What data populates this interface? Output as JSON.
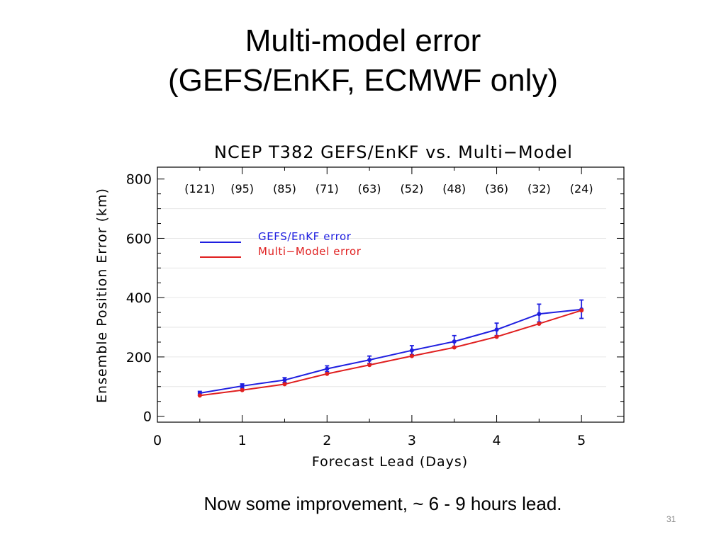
{
  "slide": {
    "title_line1": "Multi-model error",
    "title_line2": "(GEFS/EnKF, ECMWF only)",
    "caption": "Now some improvement, ~ 6 - 9 hours lead.",
    "page_number": "31"
  },
  "chart_data": {
    "type": "line",
    "title": "NCEP T382 GEFS/EnKF vs. Multi−Model",
    "xlabel": "Forecast Lead (Days)",
    "ylabel": "Ensemble Position Error (km)",
    "xlim": [
      0,
      5.5
    ],
    "ylim": [
      -20,
      840
    ],
    "xticks": [
      0,
      1,
      2,
      3,
      4,
      5
    ],
    "yticks": [
      0,
      200,
      400,
      600,
      800
    ],
    "grid": true,
    "legend_position": "upper-left",
    "x": [
      0.5,
      1,
      1.5,
      2,
      2.5,
      3,
      3.5,
      4,
      4.5,
      5
    ],
    "sample_sizes": [
      "(121)",
      "(95)",
      "(85)",
      "(71)",
      "(63)",
      "(52)",
      "(48)",
      "(36)",
      "(32)",
      "(24)"
    ],
    "series": [
      {
        "name": "GEFS/EnKF error",
        "color": "#1f1fe0",
        "values": [
          78,
          102,
          122,
          160,
          190,
          222,
          252,
          292,
          345,
          360
        ],
        "error_low": [
          72,
          95,
          114,
          150,
          178,
          208,
          235,
          272,
          318,
          330
        ],
        "error_high": [
          84,
          109,
          130,
          170,
          203,
          238,
          272,
          314,
          378,
          392
        ]
      },
      {
        "name": "Multi−Model error",
        "color": "#e01f1f",
        "values": [
          70,
          88,
          108,
          143,
          173,
          203,
          232,
          268,
          312,
          357
        ]
      }
    ]
  }
}
